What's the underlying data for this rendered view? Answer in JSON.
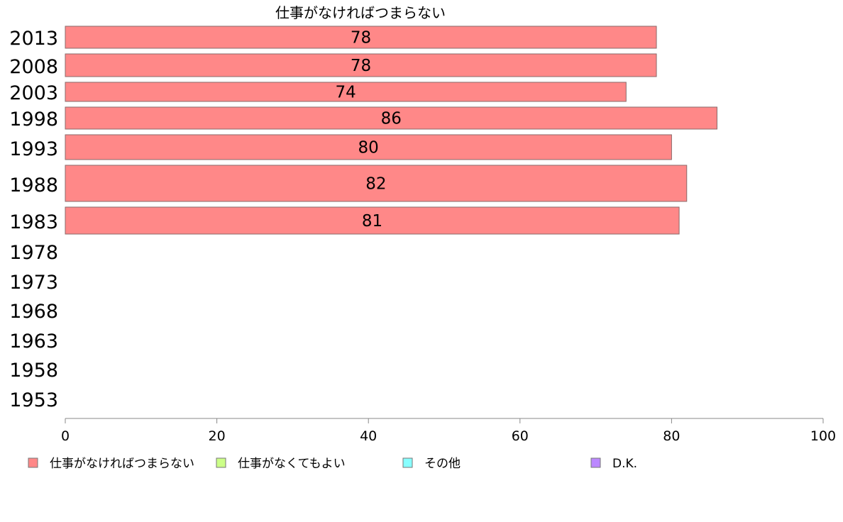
{
  "chart_data": {
    "type": "bar",
    "orientation": "horizontal",
    "title": "仕事がなければつまらない",
    "categories": [
      "2013",
      "2008",
      "2003",
      "1998",
      "1993",
      "1988",
      "1983",
      "1978",
      "1973",
      "1968",
      "1963",
      "1958",
      "1953"
    ],
    "series": [
      {
        "name": "仕事がなければつまらない",
        "color": "#ff8888",
        "values": [
          78,
          78,
          74,
          86,
          80,
          82,
          81,
          null,
          null,
          null,
          null,
          null,
          null
        ]
      },
      {
        "name": "仕事がなくてもよい",
        "color": "#ccff88",
        "values": [
          null,
          null,
          null,
          null,
          null,
          null,
          null,
          null,
          null,
          null,
          null,
          null,
          null
        ]
      },
      {
        "name": "その他",
        "color": "#88ffff",
        "values": [
          null,
          null,
          null,
          null,
          null,
          null,
          null,
          null,
          null,
          null,
          null,
          null,
          null
        ]
      },
      {
        "name": "D.K.",
        "color": "#bb88ff",
        "values": [
          null,
          null,
          null,
          null,
          null,
          null,
          null,
          null,
          null,
          null,
          null,
          null,
          null
        ]
      }
    ],
    "data_labels": [
      "78",
      "78",
      "74",
      "86",
      "80",
      "82",
      "81"
    ],
    "xlim": [
      0,
      100
    ],
    "xticks": [
      "0",
      "20",
      "40",
      "60",
      "80",
      "100"
    ],
    "grid": false,
    "legend_position": "bottom"
  }
}
